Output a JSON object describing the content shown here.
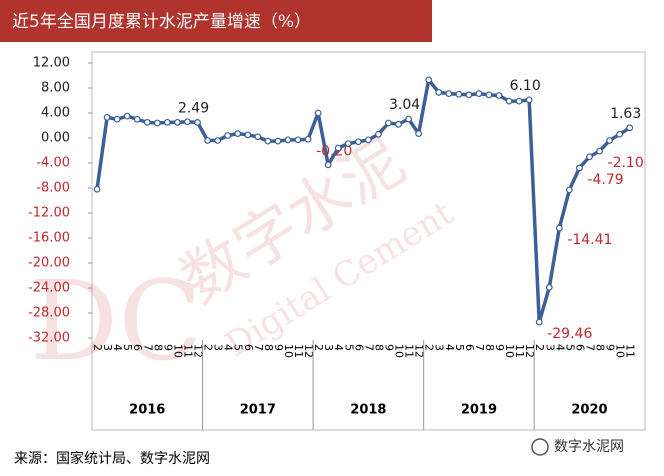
{
  "chart_data": {
    "type": "line",
    "title": "近5年全国月度累计水泥产量增速（%）",
    "source": "来源：国家统计局、数字水泥网",
    "logo": "数字水泥网",
    "watermark": {
      "mark": "DC",
      "cn": "数字水泥",
      "en": "Digital Cement"
    },
    "groups": [
      {
        "label": "2016",
        "months": [
          "2",
          "3",
          "4",
          "5",
          "6",
          "7",
          "8",
          "9",
          "10",
          "11",
          "12"
        ]
      },
      {
        "label": "2017",
        "months": [
          "2",
          "3",
          "4",
          "5",
          "6",
          "7",
          "8",
          "9",
          "10",
          "11",
          "12"
        ]
      },
      {
        "label": "2018",
        "months": [
          "2",
          "3",
          "4",
          "5",
          "6",
          "7",
          "8",
          "9",
          "10",
          "11",
          "12"
        ]
      },
      {
        "label": "2019",
        "months": [
          "2",
          "3",
          "4",
          "5",
          "6",
          "7",
          "8",
          "9",
          "10",
          "11",
          "12"
        ]
      },
      {
        "label": "2020",
        "months": [
          "2",
          "3",
          "4",
          "5",
          "6",
          "7",
          "8",
          "9",
          "10",
          "11"
        ]
      }
    ],
    "values": [
      -8.2,
      3.3,
      3.0,
      3.5,
      3.0,
      2.5,
      2.4,
      2.5,
      2.5,
      2.6,
      2.49,
      -0.4,
      -0.4,
      0.4,
      0.7,
      0.5,
      0.2,
      -0.5,
      -0.5,
      -0.3,
      -0.3,
      -0.2,
      4.0,
      -4.3,
      -1.6,
      -0.9,
      -0.6,
      -0.3,
      0.6,
      2.4,
      2.2,
      3.04,
      0.7,
      9.3,
      7.3,
      7.1,
      7.0,
      6.9,
      7.1,
      6.9,
      6.8,
      5.9,
      5.9,
      6.1,
      -29.46,
      -23.9,
      -14.41,
      -8.3,
      -4.79,
      -3.0,
      -2.1,
      -0.4,
      0.6,
      1.63
    ],
    "value_labels": [
      null,
      null,
      null,
      null,
      null,
      null,
      null,
      null,
      null,
      null,
      "2.49",
      null,
      null,
      null,
      null,
      null,
      null,
      null,
      null,
      null,
      null,
      "-0.20",
      null,
      null,
      null,
      null,
      null,
      null,
      null,
      null,
      null,
      "3.04",
      null,
      null,
      null,
      null,
      null,
      null,
      null,
      null,
      null,
      null,
      null,
      "6.10",
      "-29.46",
      null,
      "-14.41",
      null,
      "-4.79",
      null,
      "-2.10",
      null,
      null,
      "1.63"
    ],
    "color": "#3b5f98",
    "negative_label_color": "#c0282d",
    "ylim": [
      -32,
      12
    ],
    "yticks": [
      {
        "value": 12,
        "label": "12.00"
      },
      {
        "value": 8,
        "label": "8.00"
      },
      {
        "value": 4,
        "label": "4.00"
      },
      {
        "value": 0,
        "label": "0.00"
      },
      {
        "value": -4,
        "label": "-4.00"
      },
      {
        "value": -8,
        "label": "-8.00"
      },
      {
        "value": -12,
        "label": "-12.00"
      },
      {
        "value": -16,
        "label": "-16.00"
      },
      {
        "value": -20,
        "label": "-20.00"
      },
      {
        "value": -24,
        "label": "-24.00"
      },
      {
        "value": -28,
        "label": "-28.00"
      },
      {
        "value": -32,
        "label": "-32.00"
      }
    ],
    "grid": false
  }
}
